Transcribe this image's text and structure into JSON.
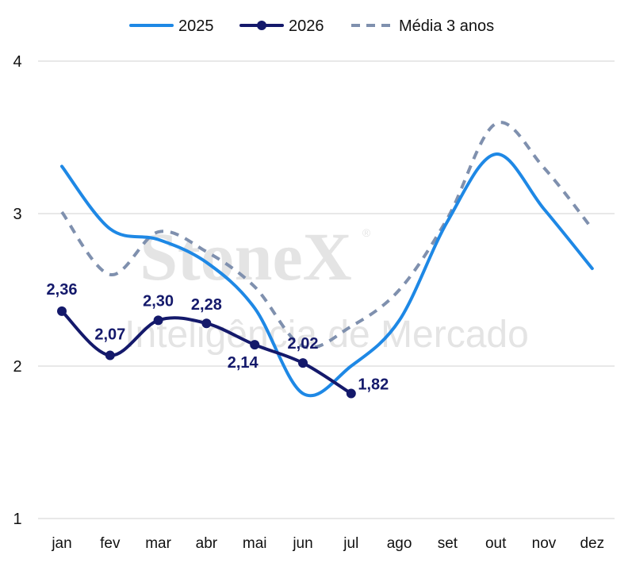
{
  "chart_data": {
    "type": "line",
    "categories": [
      "jan",
      "fev",
      "mar",
      "abr",
      "mai",
      "jun",
      "jul",
      "ago",
      "set",
      "out",
      "nov",
      "dez"
    ],
    "ylim": [
      1,
      4
    ],
    "yticks": [
      1,
      2,
      3,
      4
    ],
    "ytick_labels": [
      "1",
      "2",
      "3",
      "4"
    ],
    "grid": true,
    "legend_position": "top",
    "watermark": {
      "brand": "StoneX",
      "registered_mark": "®",
      "subtitle": "Inteligência de Mercado",
      "color": "#e4e4e4"
    },
    "series": [
      {
        "name": "2025",
        "style": "solid",
        "markers": false,
        "color": "#1e88e5",
        "values": [
          3.31,
          2.9,
          2.83,
          2.68,
          2.38,
          1.82,
          2.0,
          2.3,
          2.95,
          3.39,
          3.03,
          2.64
        ],
        "data_labels": [
          null,
          null,
          null,
          null,
          null,
          null,
          null,
          null,
          null,
          null,
          null,
          null
        ]
      },
      {
        "name": "2026",
        "style": "solid",
        "markers": true,
        "color": "#14196b",
        "values": [
          2.36,
          2.07,
          2.3,
          2.28,
          2.14,
          2.02,
          1.82,
          null,
          null,
          null,
          null,
          null
        ],
        "data_labels": [
          "2,36",
          "2,07",
          "2,30",
          "2,28",
          "2,14",
          "2,02",
          "1,82",
          null,
          null,
          null,
          null,
          null
        ]
      },
      {
        "name": "Média 3 anos",
        "style": "dashed",
        "markers": false,
        "color": "#7f90ae",
        "values": [
          3.01,
          2.6,
          2.88,
          2.75,
          2.52,
          2.13,
          2.26,
          2.5,
          2.97,
          3.59,
          3.3,
          2.9
        ],
        "data_labels": [
          null,
          null,
          null,
          null,
          null,
          null,
          null,
          null,
          null,
          null,
          null,
          null
        ]
      }
    ]
  }
}
